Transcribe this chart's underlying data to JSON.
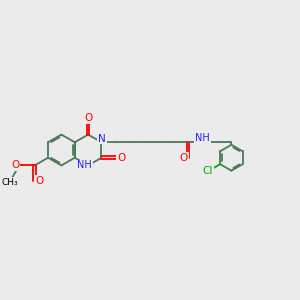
{
  "background_color": "#ebebeb",
  "bond_color": "#4a7a5a",
  "n_color": "#2020ff",
  "o_color": "#ff0000",
  "cl_color": "#00aa00",
  "line_width": 1.3,
  "font_size": 7.0,
  "fig_width": 3.0,
  "fig_height": 3.0,
  "dpi": 100,
  "xlim": [
    0,
    12
  ],
  "ylim": [
    2,
    8
  ]
}
